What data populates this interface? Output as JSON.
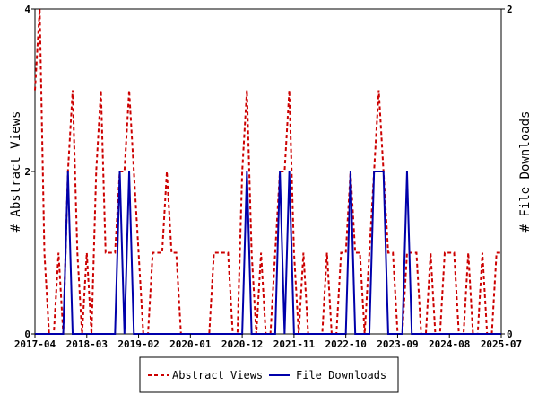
{
  "chart_data": {
    "type": "line",
    "x_tick_labels": [
      "2017-04",
      "2018-03",
      "2019-02",
      "2020-01",
      "2020-12",
      "2021-11",
      "2022-10",
      "2023-09",
      "2024-08",
      "2025-07"
    ],
    "y_left_label": "# Abstract Views",
    "y_right_label": "# File Downloads",
    "y_left_ticks": [
      "0",
      "2",
      "4"
    ],
    "y_right_ticks": [
      "0",
      "2"
    ],
    "y_left_range": [
      0,
      4
    ],
    "y_right_range": [
      0,
      2
    ],
    "x_range": [
      "2017-04",
      "2025-07"
    ],
    "grid": false,
    "legend_position": "bottom",
    "series": [
      {
        "name": "Abstract Views",
        "axis": "left",
        "color": "#cc0000",
        "style": "dashed",
        "points": [
          [
            "2017-04",
            3
          ],
          [
            "2017-05",
            4
          ],
          [
            "2017-06",
            1
          ],
          [
            "2017-07",
            0
          ],
          [
            "2017-08",
            0
          ],
          [
            "2017-09",
            1
          ],
          [
            "2017-10",
            0
          ],
          [
            "2017-11",
            2
          ],
          [
            "2017-12",
            3
          ],
          [
            "2018-01",
            1
          ],
          [
            "2018-02",
            0
          ],
          [
            "2018-03",
            1
          ],
          [
            "2018-04",
            0
          ],
          [
            "2018-05",
            2
          ],
          [
            "2018-06",
            3
          ],
          [
            "2018-07",
            1
          ],
          [
            "2018-08",
            1
          ],
          [
            "2018-09",
            1
          ],
          [
            "2018-10",
            2
          ],
          [
            "2018-11",
            2
          ],
          [
            "2018-12",
            3
          ],
          [
            "2019-01",
            2
          ],
          [
            "2019-02",
            1
          ],
          [
            "2019-03",
            0
          ],
          [
            "2019-04",
            0
          ],
          [
            "2019-05",
            1
          ],
          [
            "2019-06",
            1
          ],
          [
            "2019-07",
            1
          ],
          [
            "2019-08",
            2
          ],
          [
            "2019-09",
            1
          ],
          [
            "2019-10",
            1
          ],
          [
            "2019-11",
            0
          ],
          [
            "2019-12",
            0
          ],
          [
            "2020-01",
            0
          ],
          [
            "2020-02",
            0
          ],
          [
            "2020-03",
            0
          ],
          [
            "2020-04",
            0
          ],
          [
            "2020-05",
            0
          ],
          [
            "2020-06",
            1
          ],
          [
            "2020-07",
            1
          ],
          [
            "2020-08",
            1
          ],
          [
            "2020-09",
            1
          ],
          [
            "2020-10",
            0
          ],
          [
            "2020-11",
            0
          ],
          [
            "2020-12",
            2
          ],
          [
            "2021-01",
            3
          ],
          [
            "2021-02",
            1
          ],
          [
            "2021-03",
            0
          ],
          [
            "2021-04",
            1
          ],
          [
            "2021-05",
            0
          ],
          [
            "2021-06",
            0
          ],
          [
            "2021-07",
            1
          ],
          [
            "2021-08",
            2
          ],
          [
            "2021-09",
            2
          ],
          [
            "2021-10",
            3
          ],
          [
            "2021-11",
            1
          ],
          [
            "2021-12",
            0
          ],
          [
            "2022-01",
            1
          ],
          [
            "2022-02",
            0
          ],
          [
            "2022-03",
            0
          ],
          [
            "2022-04",
            0
          ],
          [
            "2022-05",
            0
          ],
          [
            "2022-06",
            1
          ],
          [
            "2022-07",
            0
          ],
          [
            "2022-08",
            0
          ],
          [
            "2022-09",
            1
          ],
          [
            "2022-10",
            1
          ],
          [
            "2022-11",
            2
          ],
          [
            "2022-12",
            1
          ],
          [
            "2023-01",
            1
          ],
          [
            "2023-02",
            0
          ],
          [
            "2023-03",
            1
          ],
          [
            "2023-04",
            2
          ],
          [
            "2023-05",
            3
          ],
          [
            "2023-06",
            2
          ],
          [
            "2023-07",
            1
          ],
          [
            "2023-08",
            1
          ],
          [
            "2023-09",
            0
          ],
          [
            "2023-10",
            0
          ],
          [
            "2023-11",
            1
          ],
          [
            "2023-12",
            1
          ],
          [
            "2024-01",
            1
          ],
          [
            "2024-02",
            0
          ],
          [
            "2024-03",
            0
          ],
          [
            "2024-04",
            1
          ],
          [
            "2024-05",
            0
          ],
          [
            "2024-06",
            0
          ],
          [
            "2024-07",
            1
          ],
          [
            "2024-08",
            1
          ],
          [
            "2024-09",
            1
          ],
          [
            "2024-10",
            0
          ],
          [
            "2024-11",
            0
          ],
          [
            "2024-12",
            1
          ],
          [
            "2025-01",
            0
          ],
          [
            "2025-02",
            0
          ],
          [
            "2025-03",
            1
          ],
          [
            "2025-04",
            0
          ],
          [
            "2025-05",
            0
          ],
          [
            "2025-06",
            1
          ],
          [
            "2025-07",
            1
          ]
        ]
      },
      {
        "name": "File Downloads",
        "axis": "right",
        "color": "#0000aa",
        "style": "solid",
        "points": [
          [
            "2017-04",
            0
          ],
          [
            "2017-05",
            0
          ],
          [
            "2017-06",
            0
          ],
          [
            "2017-07",
            0
          ],
          [
            "2017-08",
            0
          ],
          [
            "2017-09",
            0
          ],
          [
            "2017-10",
            0
          ],
          [
            "2017-11",
            1
          ],
          [
            "2017-12",
            0
          ],
          [
            "2018-01",
            0
          ],
          [
            "2018-02",
            0
          ],
          [
            "2018-03",
            0
          ],
          [
            "2018-04",
            0
          ],
          [
            "2018-05",
            0
          ],
          [
            "2018-06",
            0
          ],
          [
            "2018-07",
            0
          ],
          [
            "2018-08",
            0
          ],
          [
            "2018-09",
            0
          ],
          [
            "2018-10",
            1
          ],
          [
            "2018-11",
            0
          ],
          [
            "2018-12",
            1
          ],
          [
            "2019-01",
            0
          ],
          [
            "2019-02",
            0
          ],
          [
            "2019-03",
            0
          ],
          [
            "2019-04",
            0
          ],
          [
            "2019-05",
            0
          ],
          [
            "2019-06",
            0
          ],
          [
            "2019-07",
            0
          ],
          [
            "2019-08",
            0
          ],
          [
            "2019-09",
            0
          ],
          [
            "2019-10",
            0
          ],
          [
            "2019-11",
            0
          ],
          [
            "2019-12",
            0
          ],
          [
            "2020-01",
            0
          ],
          [
            "2020-02",
            0
          ],
          [
            "2020-03",
            0
          ],
          [
            "2020-04",
            0
          ],
          [
            "2020-05",
            0
          ],
          [
            "2020-06",
            0
          ],
          [
            "2020-07",
            0
          ],
          [
            "2020-08",
            0
          ],
          [
            "2020-09",
            0
          ],
          [
            "2020-10",
            0
          ],
          [
            "2020-11",
            0
          ],
          [
            "2020-12",
            0
          ],
          [
            "2021-01",
            1
          ],
          [
            "2021-02",
            0
          ],
          [
            "2021-03",
            0
          ],
          [
            "2021-04",
            0
          ],
          [
            "2021-05",
            0
          ],
          [
            "2021-06",
            0
          ],
          [
            "2021-07",
            0
          ],
          [
            "2021-08",
            1
          ],
          [
            "2021-09",
            0
          ],
          [
            "2021-10",
            1
          ],
          [
            "2021-11",
            0
          ],
          [
            "2021-12",
            0
          ],
          [
            "2022-01",
            0
          ],
          [
            "2022-02",
            0
          ],
          [
            "2022-03",
            0
          ],
          [
            "2022-04",
            0
          ],
          [
            "2022-05",
            0
          ],
          [
            "2022-06",
            0
          ],
          [
            "2022-07",
            0
          ],
          [
            "2022-08",
            0
          ],
          [
            "2022-09",
            0
          ],
          [
            "2022-10",
            0
          ],
          [
            "2022-11",
            1
          ],
          [
            "2022-12",
            0
          ],
          [
            "2023-01",
            0
          ],
          [
            "2023-02",
            0
          ],
          [
            "2023-03",
            0
          ],
          [
            "2023-04",
            1
          ],
          [
            "2023-05",
            1
          ],
          [
            "2023-06",
            1
          ],
          [
            "2023-07",
            0
          ],
          [
            "2023-08",
            0
          ],
          [
            "2023-09",
            0
          ],
          [
            "2023-10",
            0
          ],
          [
            "2023-11",
            1
          ],
          [
            "2023-12",
            0
          ],
          [
            "2024-01",
            0
          ],
          [
            "2024-02",
            0
          ],
          [
            "2024-03",
            0
          ],
          [
            "2024-04",
            0
          ],
          [
            "2024-05",
            0
          ],
          [
            "2024-06",
            0
          ],
          [
            "2024-07",
            0
          ],
          [
            "2024-08",
            0
          ],
          [
            "2024-09",
            0
          ],
          [
            "2024-10",
            0
          ],
          [
            "2024-11",
            0
          ],
          [
            "2024-12",
            0
          ],
          [
            "2025-01",
            0
          ],
          [
            "2025-02",
            0
          ],
          [
            "2025-03",
            0
          ],
          [
            "2025-04",
            0
          ],
          [
            "2025-05",
            0
          ],
          [
            "2025-06",
            0
          ],
          [
            "2025-07",
            0
          ]
        ]
      }
    ]
  }
}
